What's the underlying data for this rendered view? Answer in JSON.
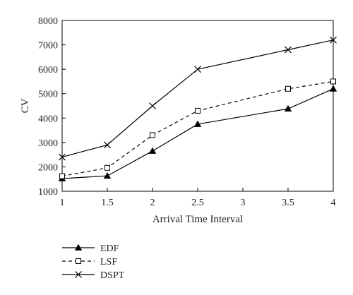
{
  "chart_data": {
    "type": "line",
    "title": "",
    "xlabel": "Arrival Time Interval",
    "ylabel": "CV",
    "x": [
      1,
      1.5,
      2,
      2.5,
      3.5,
      4
    ],
    "x_tick_labels": [
      "1",
      "1.5",
      "2",
      "2.5",
      "3",
      "3.5",
      "4"
    ],
    "x_ticks": [
      1,
      1.5,
      2,
      2.5,
      3,
      3.5,
      4
    ],
    "xlim": [
      1,
      4
    ],
    "y_ticks": [
      1000,
      2000,
      3000,
      4000,
      5000,
      6000,
      7000,
      8000
    ],
    "y_tick_labels": [
      "1000",
      "2000",
      "3000",
      "4000",
      "5000",
      "6000",
      "7000",
      "8000"
    ],
    "ylim": [
      1000,
      8000
    ],
    "grid": false,
    "legend_position": "bottom-left",
    "series": [
      {
        "name": "EDF",
        "marker": "filled-triangle",
        "line_style": "solid",
        "color": "#000000",
        "values": [
          1520,
          1630,
          2650,
          3750,
          4380,
          5200
        ]
      },
      {
        "name": "LSF",
        "marker": "open-square",
        "line_style": "dashed",
        "color": "#000000",
        "values": [
          1620,
          1960,
          3300,
          4300,
          5200,
          5500
        ]
      },
      {
        "name": "DSPT",
        "marker": "x-cross",
        "line_style": "solid",
        "color": "#000000",
        "values": [
          2400,
          2900,
          4500,
          6000,
          6800,
          7200
        ]
      }
    ]
  }
}
